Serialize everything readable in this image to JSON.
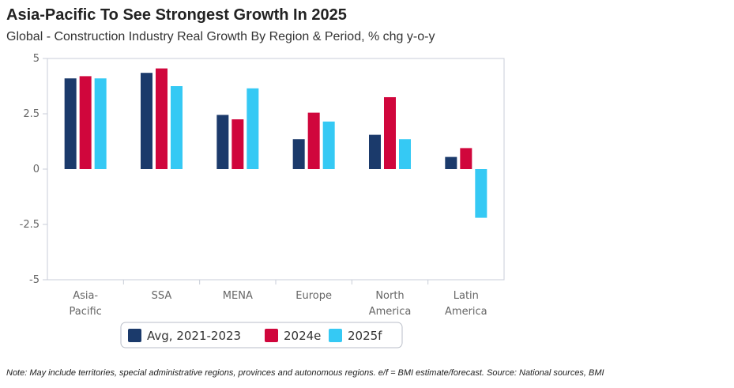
{
  "header": {
    "title": "Asia-Pacific To See Strongest Growth In 2025",
    "subtitle": "Global - Construction Industry Real Growth By Region & Period, % chg y-o-y"
  },
  "footer": {
    "note": "Note: May include territories, special administrative regions, provinces and autonomous regions. e/f = BMI estimate/forecast. Source: National sources, BMI"
  },
  "chart_data": {
    "type": "bar",
    "title": "Asia-Pacific To See Strongest Growth In 2025",
    "subtitle": "Global - Construction Industry Real Growth By Region & Period, % chg y-o-y",
    "categories": [
      [
        "Asia-",
        "Pacific"
      ],
      [
        "SSA"
      ],
      [
        "MENA"
      ],
      [
        "Europe"
      ],
      [
        "North",
        "America"
      ],
      [
        "Latin",
        "America"
      ]
    ],
    "series": [
      {
        "name": "Avg, 2021-2023",
        "color": "#1b3a6b",
        "values": [
          4.1,
          4.35,
          2.45,
          1.35,
          1.55,
          0.55
        ]
      },
      {
        "name": "2024e",
        "color": "#d0063c",
        "values": [
          4.2,
          4.55,
          2.25,
          2.55,
          3.25,
          0.95
        ]
      },
      {
        "name": "2025f",
        "color": "#35c9f4",
        "values": [
          4.1,
          3.75,
          3.65,
          2.15,
          1.35,
          -2.2
        ]
      }
    ],
    "ylim": [
      -5,
      5
    ],
    "yticks": [
      5,
      2.5,
      0,
      -2.5,
      -5
    ],
    "ytick_labels": [
      "5",
      "2.5",
      "0",
      "-2.5",
      "-5"
    ],
    "grid": false,
    "legend_position": "bottom"
  }
}
